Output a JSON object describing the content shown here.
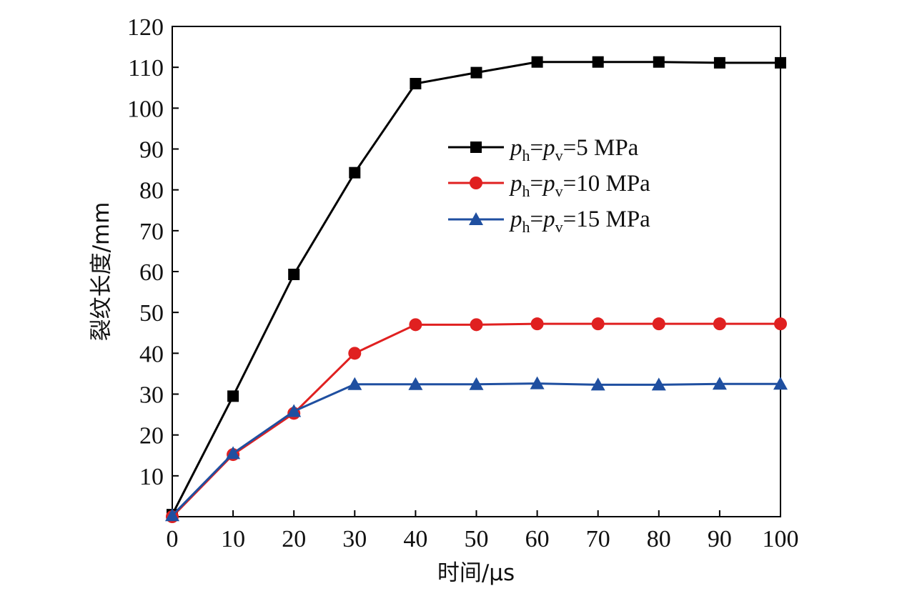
{
  "chart_data": {
    "type": "line",
    "title": "",
    "xlabel": "时间/μs",
    "ylabel": "裂纹长度/mm",
    "xlim": [
      0,
      100
    ],
    "ylim": [
      0,
      120
    ],
    "x_ticks": [
      "0",
      "10",
      "20",
      "30",
      "40",
      "50",
      "60",
      "70",
      "80",
      "90",
      "100"
    ],
    "y_ticks": [
      "10",
      "20",
      "30",
      "40",
      "50",
      "60",
      "70",
      "80",
      "90",
      "100",
      "110",
      "120"
    ],
    "grid": false,
    "legend_position": "upper-right",
    "x": [
      0,
      10,
      20,
      30,
      40,
      50,
      60,
      70,
      80,
      90,
      100
    ],
    "series": [
      {
        "name": "p_h=p_v=5 MPa",
        "legend": {
          "p": "p",
          "h": "h",
          "eq1": "=",
          "v": "v",
          "rest": "=5 MPa"
        },
        "marker": "square",
        "color": "#000000",
        "values": [
          0.5,
          29.5,
          59.3,
          84.2,
          106.0,
          108.7,
          111.3,
          111.3,
          111.3,
          111.1,
          111.1
        ]
      },
      {
        "name": "p_h=p_v=10 MPa",
        "legend": {
          "p": "p",
          "h": "h",
          "eq1": "=",
          "v": "v",
          "rest": "=10 MPa"
        },
        "marker": "circle",
        "color": "#e02020",
        "values": [
          0.0,
          15.2,
          25.3,
          40.0,
          47.0,
          47.0,
          47.2,
          47.2,
          47.2,
          47.2,
          47.2
        ]
      },
      {
        "name": "p_h=p_v=15 MPa",
        "legend": {
          "p": "p",
          "h": "h",
          "eq1": "=",
          "v": "v",
          "rest": "=15 MPa"
        },
        "marker": "triangle",
        "color": "#1f4fa0",
        "values": [
          0.3,
          15.5,
          25.8,
          32.4,
          32.4,
          32.4,
          32.6,
          32.3,
          32.3,
          32.5,
          32.5
        ]
      }
    ]
  }
}
